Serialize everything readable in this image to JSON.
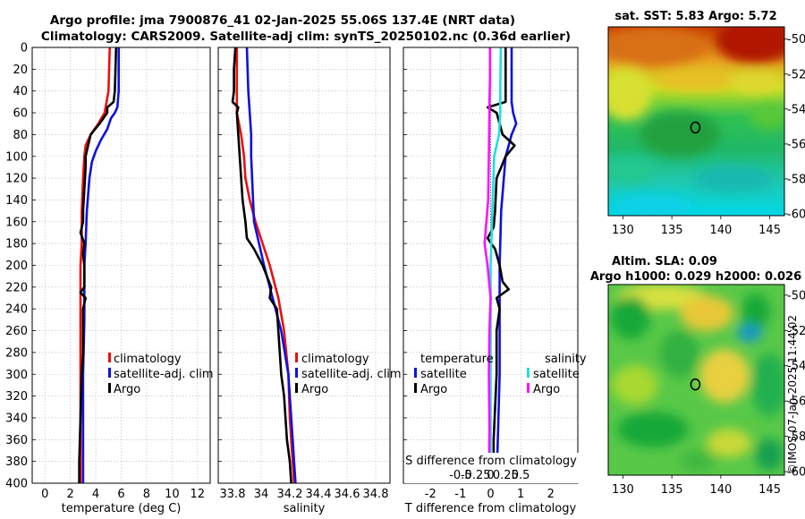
{
  "title": {
    "line1": "Argo profile: jma 7900876_41 02-Jan-2025 55.06S 137.4E (NRT data)",
    "line2": "Climatology: CARS2009. Satellite-adj clim: synTS_20250102.nc (0.36d earlier)"
  },
  "colors": {
    "climatology": "#e81010",
    "satellite": "#1010e0",
    "argo": "#000000",
    "salinity_satellite": "#20e0e0",
    "salinity_argo": "#ff10ff"
  },
  "chart_data": [
    {
      "id": "temp",
      "type": "line",
      "xlabel": "temperature (deg C)",
      "ylabel": "",
      "xlim": [
        -1,
        13
      ],
      "ylim": [
        400,
        0
      ],
      "xticks": [
        0,
        2,
        4,
        6,
        8,
        10,
        12
      ],
      "xtick_labels": [
        "0",
        "2",
        "4",
        "6",
        "8",
        "10",
        "12"
      ],
      "yticks": [
        0,
        20,
        40,
        60,
        80,
        100,
        120,
        140,
        160,
        180,
        200,
        220,
        240,
        260,
        280,
        300,
        320,
        340,
        360,
        380,
        400
      ],
      "ytick_labels": [
        "0",
        "20",
        "40",
        "60",
        "80",
        "100",
        "120",
        "140",
        "160",
        "180",
        "200",
        "220",
        "240",
        "260",
        "280",
        "300",
        "320",
        "340",
        "360",
        "380",
        "400"
      ],
      "grid": true,
      "legend": {
        "placement": "right",
        "entries": [
          {
            "label": "climatology",
            "color": "#e81010"
          },
          {
            "label": "satellite-adj. clim",
            "color": "#1010e0"
          },
          {
            "label": "Argo",
            "color": "#000000"
          }
        ]
      },
      "series": [
        {
          "name": "climatology",
          "color": "#e81010",
          "depth": [
            0,
            40,
            60,
            70,
            80,
            90,
            100,
            120,
            150,
            180,
            200,
            250,
            300,
            350,
            400
          ],
          "values": [
            5.1,
            5.0,
            4.7,
            4.2,
            3.6,
            3.2,
            3.1,
            3.0,
            2.9,
            2.9,
            2.8,
            2.8,
            2.8,
            2.8,
            2.8
          ]
        },
        {
          "name": "satellite-adj. clim",
          "color": "#1010e0",
          "depth": [
            0,
            40,
            55,
            60,
            65,
            75,
            85,
            95,
            105,
            120,
            150,
            180,
            200,
            250,
            300,
            350,
            400
          ],
          "values": [
            5.8,
            5.8,
            5.7,
            5.5,
            5.2,
            4.9,
            4.4,
            4.0,
            3.7,
            3.5,
            3.3,
            3.2,
            3.1,
            3.1,
            3.0,
            3.0,
            3.0
          ]
        },
        {
          "name": "Argo",
          "color": "#000000",
          "depth": [
            0,
            40,
            50,
            55,
            60,
            70,
            80,
            90,
            100,
            110,
            130,
            150,
            160,
            170,
            180,
            190,
            200,
            220,
            225,
            230,
            240,
            260,
            280,
            300,
            340,
            380,
            400
          ],
          "values": [
            5.6,
            5.5,
            5.4,
            4.9,
            4.9,
            4.3,
            3.6,
            3.4,
            3.2,
            3.2,
            3.1,
            3.0,
            3.0,
            2.8,
            3.1,
            3.0,
            3.1,
            3.1,
            2.8,
            3.2,
            3.0,
            3.0,
            3.0,
            2.9,
            2.8,
            2.7,
            2.7
          ]
        }
      ]
    },
    {
      "id": "sal",
      "type": "line",
      "xlabel": "salinity",
      "ylabel": "",
      "xlim": [
        33.7,
        34.9
      ],
      "ylim": [
        400,
        0
      ],
      "xticks": [
        33.8,
        34.0,
        34.2,
        34.4,
        34.6,
        34.8
      ],
      "xtick_labels": [
        "33.8",
        "34",
        "34.2",
        "34.4",
        "34.6",
        "34.8"
      ],
      "grid": true,
      "legend": {
        "placement": "right",
        "entries": [
          {
            "label": "climatology",
            "color": "#e81010"
          },
          {
            "label": "satellite-adj. clim",
            "color": "#1010e0"
          },
          {
            "label": "Argo",
            "color": "#000000"
          }
        ]
      },
      "series": [
        {
          "name": "climatology",
          "color": "#e81010",
          "depth": [
            0,
            40,
            60,
            80,
            100,
            120,
            140,
            160,
            180,
            200,
            230,
            260,
            300,
            340,
            380,
            400
          ],
          "values": [
            33.83,
            33.83,
            33.83,
            33.86,
            33.88,
            33.89,
            33.92,
            33.96,
            34.01,
            34.06,
            34.12,
            34.16,
            34.19,
            34.2,
            34.22,
            34.23
          ]
        },
        {
          "name": "satellite-adj. clim",
          "color": "#1010e0",
          "depth": [
            0,
            40,
            60,
            80,
            100,
            130,
            160,
            200,
            230,
            260,
            300,
            340,
            380,
            400
          ],
          "values": [
            33.9,
            33.91,
            33.92,
            33.93,
            33.93,
            33.94,
            33.95,
            34.02,
            34.08,
            34.14,
            34.19,
            34.21,
            34.23,
            34.24
          ]
        },
        {
          "name": "Argo",
          "color": "#000000",
          "depth": [
            0,
            20,
            40,
            50,
            55,
            60,
            80,
            100,
            120,
            140,
            160,
            175,
            185,
            200,
            210,
            220,
            230,
            240,
            260,
            280,
            300,
            320,
            360,
            380,
            400
          ],
          "values": [
            33.82,
            33.81,
            33.81,
            33.8,
            33.84,
            33.83,
            33.84,
            33.85,
            33.86,
            33.87,
            33.89,
            33.9,
            33.95,
            34.01,
            34.04,
            34.07,
            34.06,
            34.11,
            34.12,
            34.13,
            34.14,
            34.16,
            34.18,
            34.2,
            34.21
          ]
        }
      ]
    },
    {
      "id": "diff",
      "type": "line",
      "xlabel": "T difference from climatology",
      "top_xlabel": "S difference from climatology",
      "xlim": [
        -2.9,
        2.9
      ],
      "ylim": [
        400,
        0
      ],
      "xticks": [
        -2,
        -1,
        0,
        1,
        2
      ],
      "xtick_labels": [
        "-2",
        "-1",
        "0",
        "1",
        "2"
      ],
      "inner_ticks": [
        -0.5,
        -0.25,
        0,
        0.25,
        0.5
      ],
      "inner_tick_labels": [
        "-0.5",
        "-0.25",
        "0",
        "0.25",
        "0.5"
      ],
      "inner_scale": 2,
      "grid": true,
      "legend": {
        "placement": "center-right",
        "temperature_title": "temperature",
        "salinity_title": "salinity",
        "temperature_entries": [
          {
            "label": "satellite",
            "color": "#1010e0"
          },
          {
            "label": "Argo",
            "color": "#000000"
          }
        ],
        "salinity_entries": [
          {
            "label": "satellite",
            "color": "#20e0e0"
          },
          {
            "label": "Argo",
            "color": "#ff10ff"
          }
        ]
      },
      "series": [
        {
          "name": "temperature satellite",
          "color": "#1010e0",
          "depth": [
            0,
            50,
            60,
            70,
            80,
            90,
            100,
            150,
            200,
            300,
            400
          ],
          "values": [
            0.7,
            0.7,
            0.75,
            0.85,
            0.7,
            0.6,
            0.5,
            0.35,
            0.3,
            0.3,
            0.2
          ]
        },
        {
          "name": "temperature Argo",
          "color": "#000000",
          "depth": [
            0,
            40,
            50,
            55,
            60,
            70,
            80,
            90,
            100,
            120,
            150,
            165,
            175,
            185,
            200,
            215,
            222,
            230,
            240,
            260,
            300,
            360,
            400
          ],
          "values": [
            0.5,
            0.5,
            0.5,
            -0.1,
            0.2,
            0.3,
            0.4,
            0.8,
            0.5,
            0.2,
            0.15,
            0.1,
            -0.1,
            0.15,
            0.3,
            0.4,
            0.6,
            0.2,
            0.3,
            0.2,
            0.2,
            0.1,
            0.1
          ]
        },
        {
          "name": "salinity satellite",
          "color": "#20e0e0",
          "depth": [
            0,
            40,
            60,
            80,
            100,
            150,
            200,
            300,
            400
          ],
          "values": [
            0.17,
            0.16,
            0.16,
            0.14,
            0.06,
            0.03,
            0.0,
            0.0,
            0.0
          ]
        },
        {
          "name": "salinity Argo",
          "color": "#ff10ff",
          "depth": [
            0,
            30,
            50,
            60,
            100,
            140,
            160,
            180,
            200,
            230,
            260,
            300,
            350,
            400
          ],
          "values": [
            -0.01,
            -0.01,
            -0.02,
            -0.02,
            -0.03,
            -0.04,
            -0.07,
            -0.1,
            -0.05,
            0.0,
            -0.02,
            -0.03,
            -0.02,
            -0.03
          ]
        }
      ]
    }
  ],
  "maps": [
    {
      "id": "sst",
      "title": "sat. SST: 5.83 Argo: 5.72",
      "xticks": [
        130,
        135,
        140,
        145
      ],
      "yticks": [
        -50,
        -52,
        -54,
        -56,
        -58,
        -60
      ],
      "xlim": [
        128.5,
        146.5
      ],
      "ylim": [
        -60.1,
        -49.3
      ],
      "marker": {
        "lon": 137.4,
        "lat": -55.06
      }
    },
    {
      "id": "sla",
      "title_line1": "Altim. SLA: 0.09",
      "title_line2": "Argo h1000: 0.029 h2000: 0.026",
      "xticks": [
        130,
        135,
        140,
        145
      ],
      "yticks": [
        -50,
        -52,
        -54,
        -56,
        -58,
        -60
      ],
      "xlim": [
        128.5,
        146.5
      ],
      "ylim": [
        -60.2,
        -49.4
      ],
      "marker": {
        "lon": 137.4,
        "lat": -55.06
      }
    }
  ],
  "footer": {
    "credit": "©IMOS 07-Jan-2025 11:44:02"
  }
}
